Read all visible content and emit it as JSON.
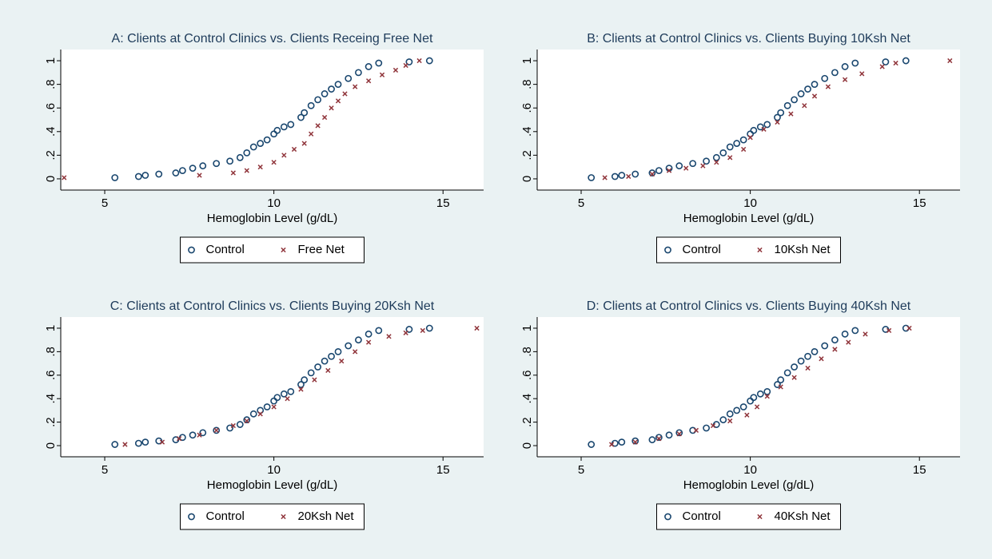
{
  "chart_data": [
    {
      "type": "scatter",
      "title": "A: Clients at Control Clinics vs. Clients Receing Free Net",
      "xlabel": "Hemoglobin Level (g/dL)",
      "xlim": [
        3.7,
        16.2
      ],
      "ylim": [
        -0.095,
        1.095
      ],
      "xticks": [
        5,
        10,
        15
      ],
      "yticks": [
        0,
        {
          "value": 0.2,
          "label": ".2"
        },
        {
          "value": 0.4,
          "label": ".4"
        },
        {
          "value": 0.6,
          "label": ".6"
        },
        {
          "value": 0.8,
          "label": ".8"
        },
        1
      ],
      "series": [
        {
          "name": "Control",
          "color": "#1a476f",
          "x": [
            5.3,
            6.0,
            6.2,
            6.6,
            7.1,
            7.3,
            7.6,
            7.9,
            8.3,
            8.7,
            9.0,
            9.2,
            9.4,
            9.6,
            9.8,
            10.0,
            10.1,
            10.3,
            10.5,
            10.8,
            10.9,
            11.1,
            11.3,
            11.5,
            11.7,
            11.9,
            12.2,
            12.5,
            12.8,
            13.1,
            14.0,
            14.6
          ],
          "values": [
            0.01,
            0.02,
            0.03,
            0.04,
            0.05,
            0.07,
            0.09,
            0.11,
            0.13,
            0.15,
            0.18,
            0.22,
            0.27,
            0.3,
            0.33,
            0.38,
            0.41,
            0.44,
            0.46,
            0.52,
            0.56,
            0.62,
            0.67,
            0.72,
            0.76,
            0.8,
            0.85,
            0.9,
            0.95,
            0.98,
            0.99,
            1.0
          ]
        },
        {
          "name": "Free Net",
          "color": "#90353b",
          "x": [
            3.8,
            7.8,
            8.8,
            9.2,
            9.6,
            10.0,
            10.3,
            10.6,
            10.9,
            11.1,
            11.3,
            11.5,
            11.7,
            11.9,
            12.1,
            12.4,
            12.8,
            13.2,
            13.6,
            13.9,
            14.3
          ],
          "values": [
            0.01,
            0.03,
            0.05,
            0.07,
            0.1,
            0.14,
            0.2,
            0.25,
            0.3,
            0.38,
            0.45,
            0.52,
            0.6,
            0.66,
            0.72,
            0.78,
            0.83,
            0.88,
            0.92,
            0.96,
            1.0
          ]
        }
      ]
    },
    {
      "type": "scatter",
      "title": "B: Clients at Control Clinics vs. Clients Buying 10Ksh Net",
      "xlabel": "Hemoglobin Level (g/dL)",
      "xlim": [
        3.7,
        16.2
      ],
      "ylim": [
        -0.095,
        1.095
      ],
      "xticks": [
        5,
        10,
        15
      ],
      "yticks": [
        0,
        {
          "value": 0.2,
          "label": ".2"
        },
        {
          "value": 0.4,
          "label": ".4"
        },
        {
          "value": 0.6,
          "label": ".6"
        },
        {
          "value": 0.8,
          "label": ".8"
        },
        1
      ],
      "series": [
        {
          "name": "Control",
          "color": "#1a476f",
          "x": [
            5.3,
            6.0,
            6.2,
            6.6,
            7.1,
            7.3,
            7.6,
            7.9,
            8.3,
            8.7,
            9.0,
            9.2,
            9.4,
            9.6,
            9.8,
            10.0,
            10.1,
            10.3,
            10.5,
            10.8,
            10.9,
            11.1,
            11.3,
            11.5,
            11.7,
            11.9,
            12.2,
            12.5,
            12.8,
            13.1,
            14.0,
            14.6
          ],
          "values": [
            0.01,
            0.02,
            0.03,
            0.04,
            0.05,
            0.07,
            0.09,
            0.11,
            0.13,
            0.15,
            0.18,
            0.22,
            0.27,
            0.3,
            0.33,
            0.38,
            0.41,
            0.44,
            0.46,
            0.52,
            0.56,
            0.62,
            0.67,
            0.72,
            0.76,
            0.8,
            0.85,
            0.9,
            0.95,
            0.98,
            0.99,
            1.0
          ]
        },
        {
          "name": "10Ksh Net",
          "color": "#90353b",
          "x": [
            5.7,
            6.4,
            7.1,
            7.6,
            8.1,
            8.6,
            9.0,
            9.4,
            9.8,
            10.0,
            10.4,
            10.8,
            11.2,
            11.6,
            11.9,
            12.3,
            12.8,
            13.3,
            13.9,
            14.3,
            15.9
          ],
          "values": [
            0.01,
            0.02,
            0.04,
            0.07,
            0.09,
            0.11,
            0.14,
            0.18,
            0.25,
            0.35,
            0.42,
            0.48,
            0.55,
            0.62,
            0.7,
            0.78,
            0.84,
            0.89,
            0.95,
            0.98,
            1.0
          ]
        }
      ]
    },
    {
      "type": "scatter",
      "title": "C: Clients at Control Clinics vs. Clients Buying 20Ksh Net",
      "xlabel": "Hemoglobin Level (g/dL)",
      "xlim": [
        3.7,
        16.2
      ],
      "ylim": [
        -0.095,
        1.095
      ],
      "xticks": [
        5,
        10,
        15
      ],
      "yticks": [
        0,
        {
          "value": 0.2,
          "label": ".2"
        },
        {
          "value": 0.4,
          "label": ".4"
        },
        {
          "value": 0.6,
          "label": ".6"
        },
        {
          "value": 0.8,
          "label": ".8"
        },
        1
      ],
      "series": [
        {
          "name": "Control",
          "color": "#1a476f",
          "x": [
            5.3,
            6.0,
            6.2,
            6.6,
            7.1,
            7.3,
            7.6,
            7.9,
            8.3,
            8.7,
            9.0,
            9.2,
            9.4,
            9.6,
            9.8,
            10.0,
            10.1,
            10.3,
            10.5,
            10.8,
            10.9,
            11.1,
            11.3,
            11.5,
            11.7,
            11.9,
            12.2,
            12.5,
            12.8,
            13.1,
            14.0,
            14.6
          ],
          "values": [
            0.01,
            0.02,
            0.03,
            0.04,
            0.05,
            0.07,
            0.09,
            0.11,
            0.13,
            0.15,
            0.18,
            0.22,
            0.27,
            0.3,
            0.33,
            0.38,
            0.41,
            0.44,
            0.46,
            0.52,
            0.56,
            0.62,
            0.67,
            0.72,
            0.76,
            0.8,
            0.85,
            0.9,
            0.95,
            0.98,
            0.99,
            1.0
          ]
        },
        {
          "name": "20Ksh Net",
          "color": "#90353b",
          "x": [
            5.6,
            6.7,
            7.2,
            7.8,
            8.3,
            8.8,
            9.2,
            9.6,
            10.0,
            10.4,
            10.8,
            11.2,
            11.6,
            12.0,
            12.4,
            12.8,
            13.4,
            13.9,
            14.4,
            16.0
          ],
          "values": [
            0.01,
            0.03,
            0.06,
            0.09,
            0.13,
            0.17,
            0.21,
            0.27,
            0.33,
            0.4,
            0.48,
            0.56,
            0.64,
            0.72,
            0.8,
            0.88,
            0.93,
            0.96,
            0.98,
            1.0
          ]
        }
      ]
    },
    {
      "type": "scatter",
      "title": "D: Clients at Control Clinics vs. Clients Buying 40Ksh Net",
      "xlabel": "Hemoglobin Level (g/dL)",
      "xlim": [
        3.7,
        16.2
      ],
      "ylim": [
        -0.095,
        1.095
      ],
      "xticks": [
        5,
        10,
        15
      ],
      "yticks": [
        0,
        {
          "value": 0.2,
          "label": ".2"
        },
        {
          "value": 0.4,
          "label": ".4"
        },
        {
          "value": 0.6,
          "label": ".6"
        },
        {
          "value": 0.8,
          "label": ".8"
        },
        1
      ],
      "series": [
        {
          "name": "Control",
          "color": "#1a476f",
          "x": [
            5.3,
            6.0,
            6.2,
            6.6,
            7.1,
            7.3,
            7.6,
            7.9,
            8.3,
            8.7,
            9.0,
            9.2,
            9.4,
            9.6,
            9.8,
            10.0,
            10.1,
            10.3,
            10.5,
            10.8,
            10.9,
            11.1,
            11.3,
            11.5,
            11.7,
            11.9,
            12.2,
            12.5,
            12.8,
            13.1,
            14.0,
            14.6
          ],
          "values": [
            0.01,
            0.02,
            0.03,
            0.04,
            0.05,
            0.07,
            0.09,
            0.11,
            0.13,
            0.15,
            0.18,
            0.22,
            0.27,
            0.3,
            0.33,
            0.38,
            0.41,
            0.44,
            0.46,
            0.52,
            0.56,
            0.62,
            0.67,
            0.72,
            0.76,
            0.8,
            0.85,
            0.9,
            0.95,
            0.98,
            0.99,
            1.0
          ]
        },
        {
          "name": "40Ksh Net",
          "color": "#90353b",
          "x": [
            5.9,
            6.6,
            7.3,
            7.9,
            8.4,
            8.9,
            9.4,
            9.9,
            10.2,
            10.5,
            10.9,
            11.3,
            11.7,
            12.1,
            12.5,
            12.9,
            13.4,
            14.1,
            14.7
          ],
          "values": [
            0.01,
            0.03,
            0.06,
            0.1,
            0.13,
            0.17,
            0.21,
            0.26,
            0.33,
            0.42,
            0.5,
            0.58,
            0.66,
            0.74,
            0.82,
            0.88,
            0.95,
            0.98,
            1.0
          ]
        }
      ]
    }
  ]
}
